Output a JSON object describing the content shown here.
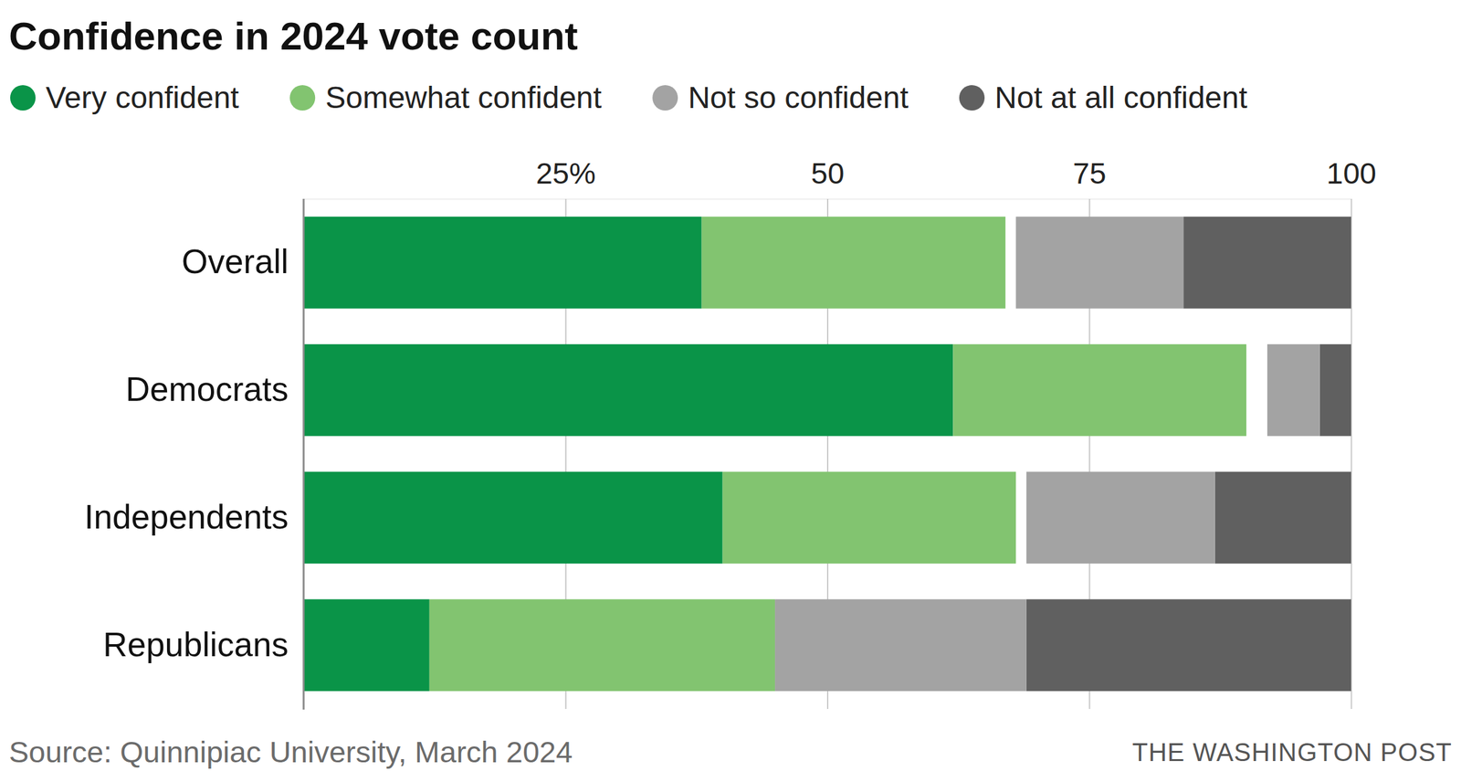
{
  "chart_data": {
    "type": "bar",
    "title": "Confidence in 2024 vote count",
    "orientation": "horizontal",
    "stacked": true,
    "legend": "top",
    "grid": true,
    "categories": [
      "Overall",
      "Democrats",
      "Independents",
      "Republicans"
    ],
    "series": [
      {
        "name": "Very confident",
        "color": "#0a9448",
        "values": [
          38,
          62,
          40,
          12
        ]
      },
      {
        "name": "Somewhat confident",
        "color": "#82c470",
        "values": [
          29,
          28,
          28,
          33
        ]
      },
      {
        "name": "Not so confident",
        "color": "#a3a3a3",
        "values": [
          16,
          5,
          18,
          24
        ]
      },
      {
        "name": "Not at all confident",
        "color": "#606060",
        "values": [
          16,
          3,
          13,
          31
        ]
      }
    ],
    "xlim": [
      0,
      100
    ],
    "xticks": [
      {
        "value": 25,
        "label": "25%"
      },
      50,
      75,
      100
    ],
    "source": "Source: Quinnipiac University, March 2024",
    "credit": "THE WASHINGTON POST"
  }
}
